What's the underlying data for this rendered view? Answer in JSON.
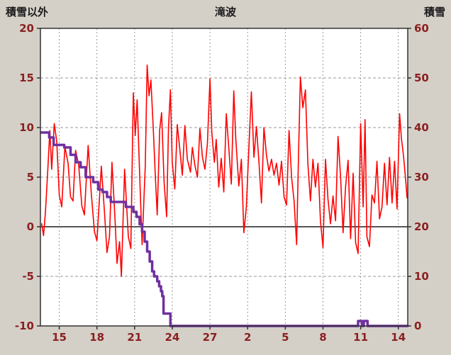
{
  "header": {
    "left_axis_title": "積雪以外",
    "title": "滝波",
    "right_axis_title": "積雪"
  },
  "chart_data": {
    "type": "line",
    "title": "滝波",
    "background": "#d4d0c8",
    "plot_background": "#ffffff",
    "tick_label_color": "#8b2020",
    "grid": true,
    "left_axis": {
      "label": "積雪以外",
      "min": -10,
      "max": 20,
      "ticks": [
        20,
        15,
        10,
        5,
        0,
        -5,
        -10
      ]
    },
    "right_axis": {
      "label": "積雪",
      "min": 0,
      "max": 60,
      "ticks": [
        60,
        50,
        40,
        30,
        20,
        10,
        0
      ]
    },
    "x_axis": {
      "tick_labels": [
        "15",
        "18",
        "21",
        "24",
        "27",
        "2",
        "5",
        "8",
        "11",
        "14"
      ],
      "tick_positions": [
        15,
        18,
        21,
        24,
        27,
        30,
        33,
        36,
        39,
        42
      ],
      "range": [
        13.5,
        42.75
      ]
    },
    "series": [
      {
        "name": "積雪以外",
        "axis": "left",
        "color": "#ff0000",
        "width": 1.6,
        "points": [
          [
            13.6,
            0.3
          ],
          [
            13.75,
            -0.9
          ],
          [
            13.9,
            1.5
          ],
          [
            14.1,
            6.0
          ],
          [
            14.25,
            9.7
          ],
          [
            14.4,
            5.8
          ],
          [
            14.6,
            10.4
          ],
          [
            14.8,
            8.6
          ],
          [
            15.0,
            3.2
          ],
          [
            15.2,
            2.0
          ],
          [
            15.45,
            8.1
          ],
          [
            15.7,
            6.4
          ],
          [
            15.9,
            3.0
          ],
          [
            16.1,
            2.6
          ],
          [
            16.3,
            7.7
          ],
          [
            16.55,
            6.2
          ],
          [
            16.8,
            2.1
          ],
          [
            17.0,
            1.2
          ],
          [
            17.3,
            8.2
          ],
          [
            17.55,
            3.4
          ],
          [
            17.8,
            -0.5
          ],
          [
            18.0,
            -1.4
          ],
          [
            18.2,
            2.8
          ],
          [
            18.35,
            6.1
          ],
          [
            18.6,
            1.5
          ],
          [
            18.8,
            -2.6
          ],
          [
            19.0,
            -1.0
          ],
          [
            19.2,
            6.5
          ],
          [
            19.45,
            0.5
          ],
          [
            19.6,
            -3.7
          ],
          [
            19.8,
            -1.5
          ],
          [
            19.95,
            -5.0
          ],
          [
            20.2,
            5.8
          ],
          [
            20.5,
            -1.0
          ],
          [
            20.7,
            -2.2
          ],
          [
            20.9,
            13.5
          ],
          [
            21.05,
            9.2
          ],
          [
            21.2,
            12.8
          ],
          [
            21.45,
            3.5
          ],
          [
            21.6,
            -1.8
          ],
          [
            21.85,
            6.2
          ],
          [
            22.0,
            16.3
          ],
          [
            22.15,
            13.2
          ],
          [
            22.3,
            14.8
          ],
          [
            22.5,
            9.5
          ],
          [
            22.65,
            5.2
          ],
          [
            22.8,
            1.2
          ],
          [
            23.0,
            9.8
          ],
          [
            23.15,
            11.5
          ],
          [
            23.35,
            4.5
          ],
          [
            23.55,
            1.0
          ],
          [
            23.7,
            10.0
          ],
          [
            23.85,
            13.8
          ],
          [
            24.0,
            6.5
          ],
          [
            24.2,
            3.8
          ],
          [
            24.4,
            10.3
          ],
          [
            24.6,
            7.8
          ],
          [
            24.8,
            5.2
          ],
          [
            25.0,
            10.2
          ],
          [
            25.2,
            6.8
          ],
          [
            25.45,
            5.5
          ],
          [
            25.6,
            8.0
          ],
          [
            25.8,
            6.2
          ],
          [
            26.0,
            5.0
          ],
          [
            26.2,
            9.9
          ],
          [
            26.4,
            7.0
          ],
          [
            26.6,
            5.8
          ],
          [
            26.8,
            8.4
          ],
          [
            27.0,
            14.9
          ],
          [
            27.15,
            9.5
          ],
          [
            27.35,
            6.5
          ],
          [
            27.5,
            8.8
          ],
          [
            27.7,
            4.0
          ],
          [
            27.9,
            6.9
          ],
          [
            28.1,
            3.5
          ],
          [
            28.3,
            11.4
          ],
          [
            28.5,
            8.0
          ],
          [
            28.7,
            4.3
          ],
          [
            28.9,
            13.7
          ],
          [
            29.05,
            9.0
          ],
          [
            29.3,
            4.1
          ],
          [
            29.5,
            6.8
          ],
          [
            29.7,
            -0.6
          ],
          [
            29.9,
            2.0
          ],
          [
            30.1,
            8.0
          ],
          [
            30.3,
            13.6
          ],
          [
            30.5,
            7.0
          ],
          [
            30.7,
            10.1
          ],
          [
            30.9,
            6.6
          ],
          [
            31.1,
            2.4
          ],
          [
            31.3,
            10.0
          ],
          [
            31.5,
            7.2
          ],
          [
            31.7,
            5.6
          ],
          [
            31.9,
            6.8
          ],
          [
            32.1,
            5.2
          ],
          [
            32.3,
            6.4
          ],
          [
            32.5,
            4.2
          ],
          [
            32.7,
            6.6
          ],
          [
            32.9,
            3.0
          ],
          [
            33.1,
            2.2
          ],
          [
            33.3,
            9.7
          ],
          [
            33.5,
            5.0
          ],
          [
            33.7,
            2.6
          ],
          [
            33.9,
            -1.8
          ],
          [
            34.05,
            7.0
          ],
          [
            34.2,
            15.1
          ],
          [
            34.4,
            12.0
          ],
          [
            34.6,
            13.8
          ],
          [
            34.8,
            6.3
          ],
          [
            35.0,
            2.6
          ],
          [
            35.2,
            6.8
          ],
          [
            35.4,
            4.0
          ],
          [
            35.6,
            6.4
          ],
          [
            35.8,
            0.6
          ],
          [
            36.0,
            -2.1
          ],
          [
            36.2,
            6.8
          ],
          [
            36.4,
            2.8
          ],
          [
            36.6,
            0.3
          ],
          [
            36.8,
            3.1
          ],
          [
            37.0,
            0.6
          ],
          [
            37.2,
            9.1
          ],
          [
            37.4,
            5.0
          ],
          [
            37.6,
            -0.6
          ],
          [
            37.8,
            4.0
          ],
          [
            38.0,
            6.7
          ],
          [
            38.2,
            -1.2
          ],
          [
            38.4,
            5.4
          ],
          [
            38.6,
            -1.6
          ],
          [
            38.8,
            -2.7
          ],
          [
            39.0,
            10.4
          ],
          [
            39.2,
            2.0
          ],
          [
            39.35,
            10.8
          ],
          [
            39.5,
            -1.0
          ],
          [
            39.7,
            -2.0
          ],
          [
            39.9,
            3.2
          ],
          [
            40.1,
            2.4
          ],
          [
            40.3,
            6.6
          ],
          [
            40.5,
            0.8
          ],
          [
            40.7,
            2.0
          ],
          [
            40.9,
            6.4
          ],
          [
            41.1,
            2.2
          ],
          [
            41.3,
            7.0
          ],
          [
            41.5,
            2.4
          ],
          [
            41.7,
            6.6
          ],
          [
            41.9,
            1.8
          ],
          [
            42.1,
            11.4
          ],
          [
            42.25,
            8.9
          ],
          [
            42.4,
            7.3
          ],
          [
            42.55,
            5.2
          ],
          [
            42.7,
            2.9
          ]
        ]
      },
      {
        "name": "積雪",
        "axis": "right",
        "color": "#7030a0",
        "width": 3.5,
        "points": [
          [
            13.55,
            39
          ],
          [
            14.2,
            39
          ],
          [
            14.2,
            38
          ],
          [
            14.55,
            38
          ],
          [
            14.55,
            36.5
          ],
          [
            15.4,
            36.5
          ],
          [
            15.4,
            36
          ],
          [
            15.9,
            36
          ],
          [
            15.9,
            34.5
          ],
          [
            16.3,
            34.5
          ],
          [
            16.3,
            33
          ],
          [
            16.7,
            33
          ],
          [
            16.7,
            32
          ],
          [
            17.1,
            32
          ],
          [
            17.1,
            30
          ],
          [
            17.7,
            30
          ],
          [
            17.7,
            29
          ],
          [
            18.1,
            29
          ],
          [
            18.1,
            27.5
          ],
          [
            18.45,
            27.5
          ],
          [
            18.45,
            27
          ],
          [
            18.8,
            27
          ],
          [
            18.8,
            26
          ],
          [
            19.1,
            26
          ],
          [
            19.1,
            25
          ],
          [
            20.3,
            25
          ],
          [
            20.3,
            24
          ],
          [
            20.9,
            24
          ],
          [
            20.9,
            23
          ],
          [
            21.15,
            23
          ],
          [
            21.15,
            22
          ],
          [
            21.4,
            22
          ],
          [
            21.4,
            20.5
          ],
          [
            21.6,
            20.5
          ],
          [
            21.6,
            19
          ],
          [
            21.8,
            19
          ],
          [
            21.8,
            17
          ],
          [
            22.0,
            17
          ],
          [
            22.0,
            15
          ],
          [
            22.2,
            15
          ],
          [
            22.2,
            13
          ],
          [
            22.4,
            13
          ],
          [
            22.4,
            11
          ],
          [
            22.55,
            11
          ],
          [
            22.55,
            10
          ],
          [
            22.8,
            10
          ],
          [
            22.8,
            9
          ],
          [
            22.95,
            9
          ],
          [
            22.95,
            8
          ],
          [
            23.1,
            8
          ],
          [
            23.1,
            7
          ],
          [
            23.2,
            7
          ],
          [
            23.2,
            6
          ],
          [
            23.3,
            6
          ],
          [
            23.3,
            2.5
          ],
          [
            23.85,
            2.5
          ],
          [
            23.85,
            0
          ],
          [
            38.8,
            0
          ],
          [
            38.8,
            1
          ],
          [
            39.1,
            1
          ],
          [
            39.1,
            0
          ],
          [
            39.25,
            0
          ],
          [
            39.25,
            1
          ],
          [
            39.55,
            1
          ],
          [
            39.55,
            0
          ],
          [
            42.75,
            0
          ]
        ]
      }
    ]
  }
}
